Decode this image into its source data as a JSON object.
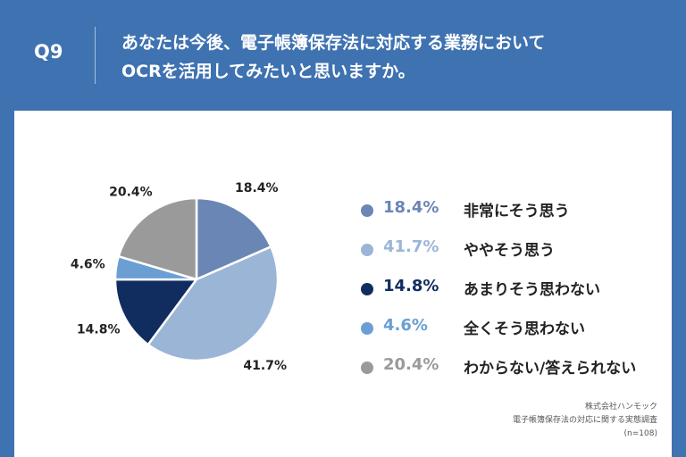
{
  "header": {
    "question_number": "Q9",
    "title_line1": "あなたは今後、電子帳簿保存法に対応する業務において",
    "title_line2": "OCRを活用してみたいと思いますか。"
  },
  "chart_data": {
    "type": "pie",
    "start_angle_deg": 0,
    "direction": "clockwise",
    "slices": [
      {
        "label": "非常にそう思う",
        "value": 18.4,
        "display": "18.4%",
        "color": "#6a86b5"
      },
      {
        "label": "ややそう思う",
        "value": 41.7,
        "display": "41.7%",
        "color": "#9bb5d6"
      },
      {
        "label": "あまりそう思わない",
        "value": 14.8,
        "display": "14.8%",
        "color": "#112d60"
      },
      {
        "label": "全くそう思わない",
        "value": 4.6,
        "display": "4.6%",
        "color": "#6b9fd4"
      },
      {
        "label": "わからない/答えられない",
        "value": 20.4,
        "display": "20.4%",
        "color": "#9a9a9a"
      }
    ]
  },
  "credits": {
    "company": "株式会社ハンモック",
    "survey": "電子帳簿保存法の対応に関する実態調査",
    "sample": "(n=108)"
  }
}
